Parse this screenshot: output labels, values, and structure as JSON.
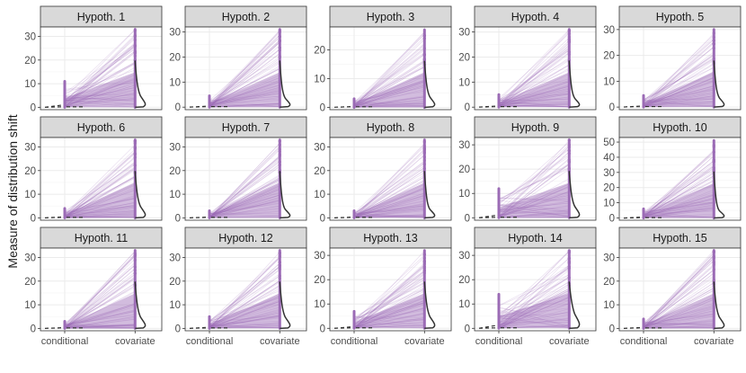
{
  "chart_data": {
    "type": "faceted paired-line plot with violin densities",
    "ylabel": "Measure of distribution shift",
    "xlabel": "",
    "categories": [
      "conditional",
      "covariate"
    ],
    "colors": {
      "lines": "#9b6bb5",
      "violin": "#333333",
      "dashed": "#333333",
      "strip_bg": "#d9d9d9",
      "grid": "#ebebeb"
    },
    "panels": [
      {
        "title": "Hypoth. 1",
        "ylim": [
          -1,
          34
        ],
        "yticks": [
          0,
          10,
          20,
          30
        ],
        "conditional_max": 11,
        "covariate_max": 33,
        "covariate_median": 4
      },
      {
        "title": "Hypoth. 2",
        "ylim": [
          -1,
          32
        ],
        "yticks": [
          0,
          10,
          20,
          30
        ],
        "conditional_max": 4.5,
        "covariate_max": 31,
        "covariate_median": 3
      },
      {
        "title": "Hypoth. 3",
        "ylim": [
          -0.8,
          28
        ],
        "yticks": [
          0,
          10,
          20
        ],
        "conditional_max": 3,
        "covariate_max": 27,
        "covariate_median": 3
      },
      {
        "title": "Hypoth. 4",
        "ylim": [
          -1,
          32
        ],
        "yticks": [
          0,
          10,
          20,
          30
        ],
        "conditional_max": 5,
        "covariate_max": 31,
        "covariate_median": 3
      },
      {
        "title": "Hypoth. 5",
        "ylim": [
          -1,
          31
        ],
        "yticks": [
          0,
          10,
          20,
          30
        ],
        "conditional_max": 4.5,
        "covariate_max": 30,
        "covariate_median": 3
      },
      {
        "title": "Hypoth. 6",
        "ylim": [
          -1,
          34
        ],
        "yticks": [
          0,
          10,
          20,
          30
        ],
        "conditional_max": 4,
        "covariate_max": 33,
        "covariate_median": 4
      },
      {
        "title": "Hypoth. 7",
        "ylim": [
          -1,
          34
        ],
        "yticks": [
          0,
          10,
          20,
          30
        ],
        "conditional_max": 3,
        "covariate_max": 33,
        "covariate_median": 3
      },
      {
        "title": "Hypoth. 8",
        "ylim": [
          -1,
          34
        ],
        "yticks": [
          0,
          10,
          20,
          30
        ],
        "conditional_max": 3,
        "covariate_max": 33,
        "covariate_median": 3
      },
      {
        "title": "Hypoth. 9",
        "ylim": [
          -1,
          33
        ],
        "yticks": [
          0,
          10,
          20,
          30
        ],
        "conditional_max": 12,
        "covariate_max": 32,
        "covariate_median": 4
      },
      {
        "title": "Hypoth. 10",
        "ylim": [
          -1.5,
          53
        ],
        "yticks": [
          0,
          10,
          20,
          30,
          40,
          50
        ],
        "conditional_max": 6,
        "covariate_max": 51,
        "covariate_median": 4
      },
      {
        "title": "Hypoth. 11",
        "ylim": [
          -1,
          34
        ],
        "yticks": [
          0,
          10,
          20,
          30
        ],
        "conditional_max": 3,
        "covariate_max": 33,
        "covariate_median": 4
      },
      {
        "title": "Hypoth. 12",
        "ylim": [
          -1,
          34
        ],
        "yticks": [
          0,
          10,
          20,
          30
        ],
        "conditional_max": 5,
        "covariate_max": 33,
        "covariate_median": 4
      },
      {
        "title": "Hypoth. 13",
        "ylim": [
          -1,
          33
        ],
        "yticks": [
          0,
          10,
          20,
          30
        ],
        "conditional_max": 7,
        "covariate_max": 32,
        "covariate_median": 4
      },
      {
        "title": "Hypoth. 14",
        "ylim": [
          -1,
          33
        ],
        "yticks": [
          0,
          10,
          20,
          30
        ],
        "conditional_max": 14,
        "covariate_max": 32,
        "covariate_median": 5
      },
      {
        "title": "Hypoth. 15",
        "ylim": [
          -1,
          34
        ],
        "yticks": [
          0,
          10,
          20,
          30
        ],
        "conditional_max": 4,
        "covariate_max": 33,
        "covariate_median": 4
      }
    ]
  }
}
